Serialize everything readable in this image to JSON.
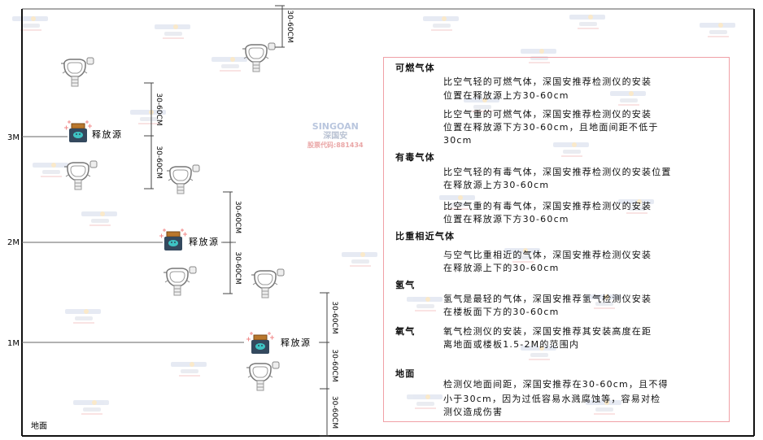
{
  "watermark": {
    "brand": "SINGOAN",
    "cn": "深国安",
    "code": "股票代码:881434"
  },
  "levels": [
    {
      "label": "3M"
    },
    {
      "label": "2M"
    },
    {
      "label": "1M"
    }
  ],
  "ground_label": "地面",
  "source_label": "释放源",
  "dimension_label": "30-60CM",
  "panel": {
    "sections": [
      {
        "title": "可燃气体",
        "paragraphs": [
          [
            "比空气轻的可燃气体，深国安推荐检测仪的安装",
            "位置在释放源上方30-60cm"
          ],
          [
            "比空气重的可燃气体，深国安推荐检测仪的安装",
            "位置在释放源下方30-60cm，且地面间距不低于",
            "30cm"
          ]
        ]
      },
      {
        "title": "有毒气体",
        "paragraphs": [
          [
            "比空气轻的有毒气体，深国安推荐检测仪的安装位置",
            "在释放源上方30-60cm"
          ],
          [
            "比空气重的有毒气体，深国安推荐检测仪的安装",
            "位置在释放源下方30-60cm"
          ]
        ]
      },
      {
        "title": "比重相近气体",
        "paragraphs": [
          [
            "与空气比重相近的气体，深国安推荐检测仪安装",
            "在释放源上下的30-60cm"
          ]
        ]
      },
      {
        "title": "氢气",
        "paragraphs": [
          [
            "氢气是最轻的气体，深国安推荐氢气检测仪安装",
            "在楼板面下方的30-60cm"
          ]
        ]
      },
      {
        "title": "氧气",
        "paragraphs": [
          [
            "氧气检测仪的安装，深国安推荐其安装高度在距",
            "离地面或楼板1.5-2M的范围内"
          ]
        ]
      },
      {
        "title": "地面",
        "paragraphs": [
          [
            "检测仪地面间距，深国安推荐在30-60cm，且不得",
            "小于30cm，因为过低容易水溅腐蚀等，容易对检",
            "测仪造成伤害"
          ]
        ]
      }
    ]
  }
}
